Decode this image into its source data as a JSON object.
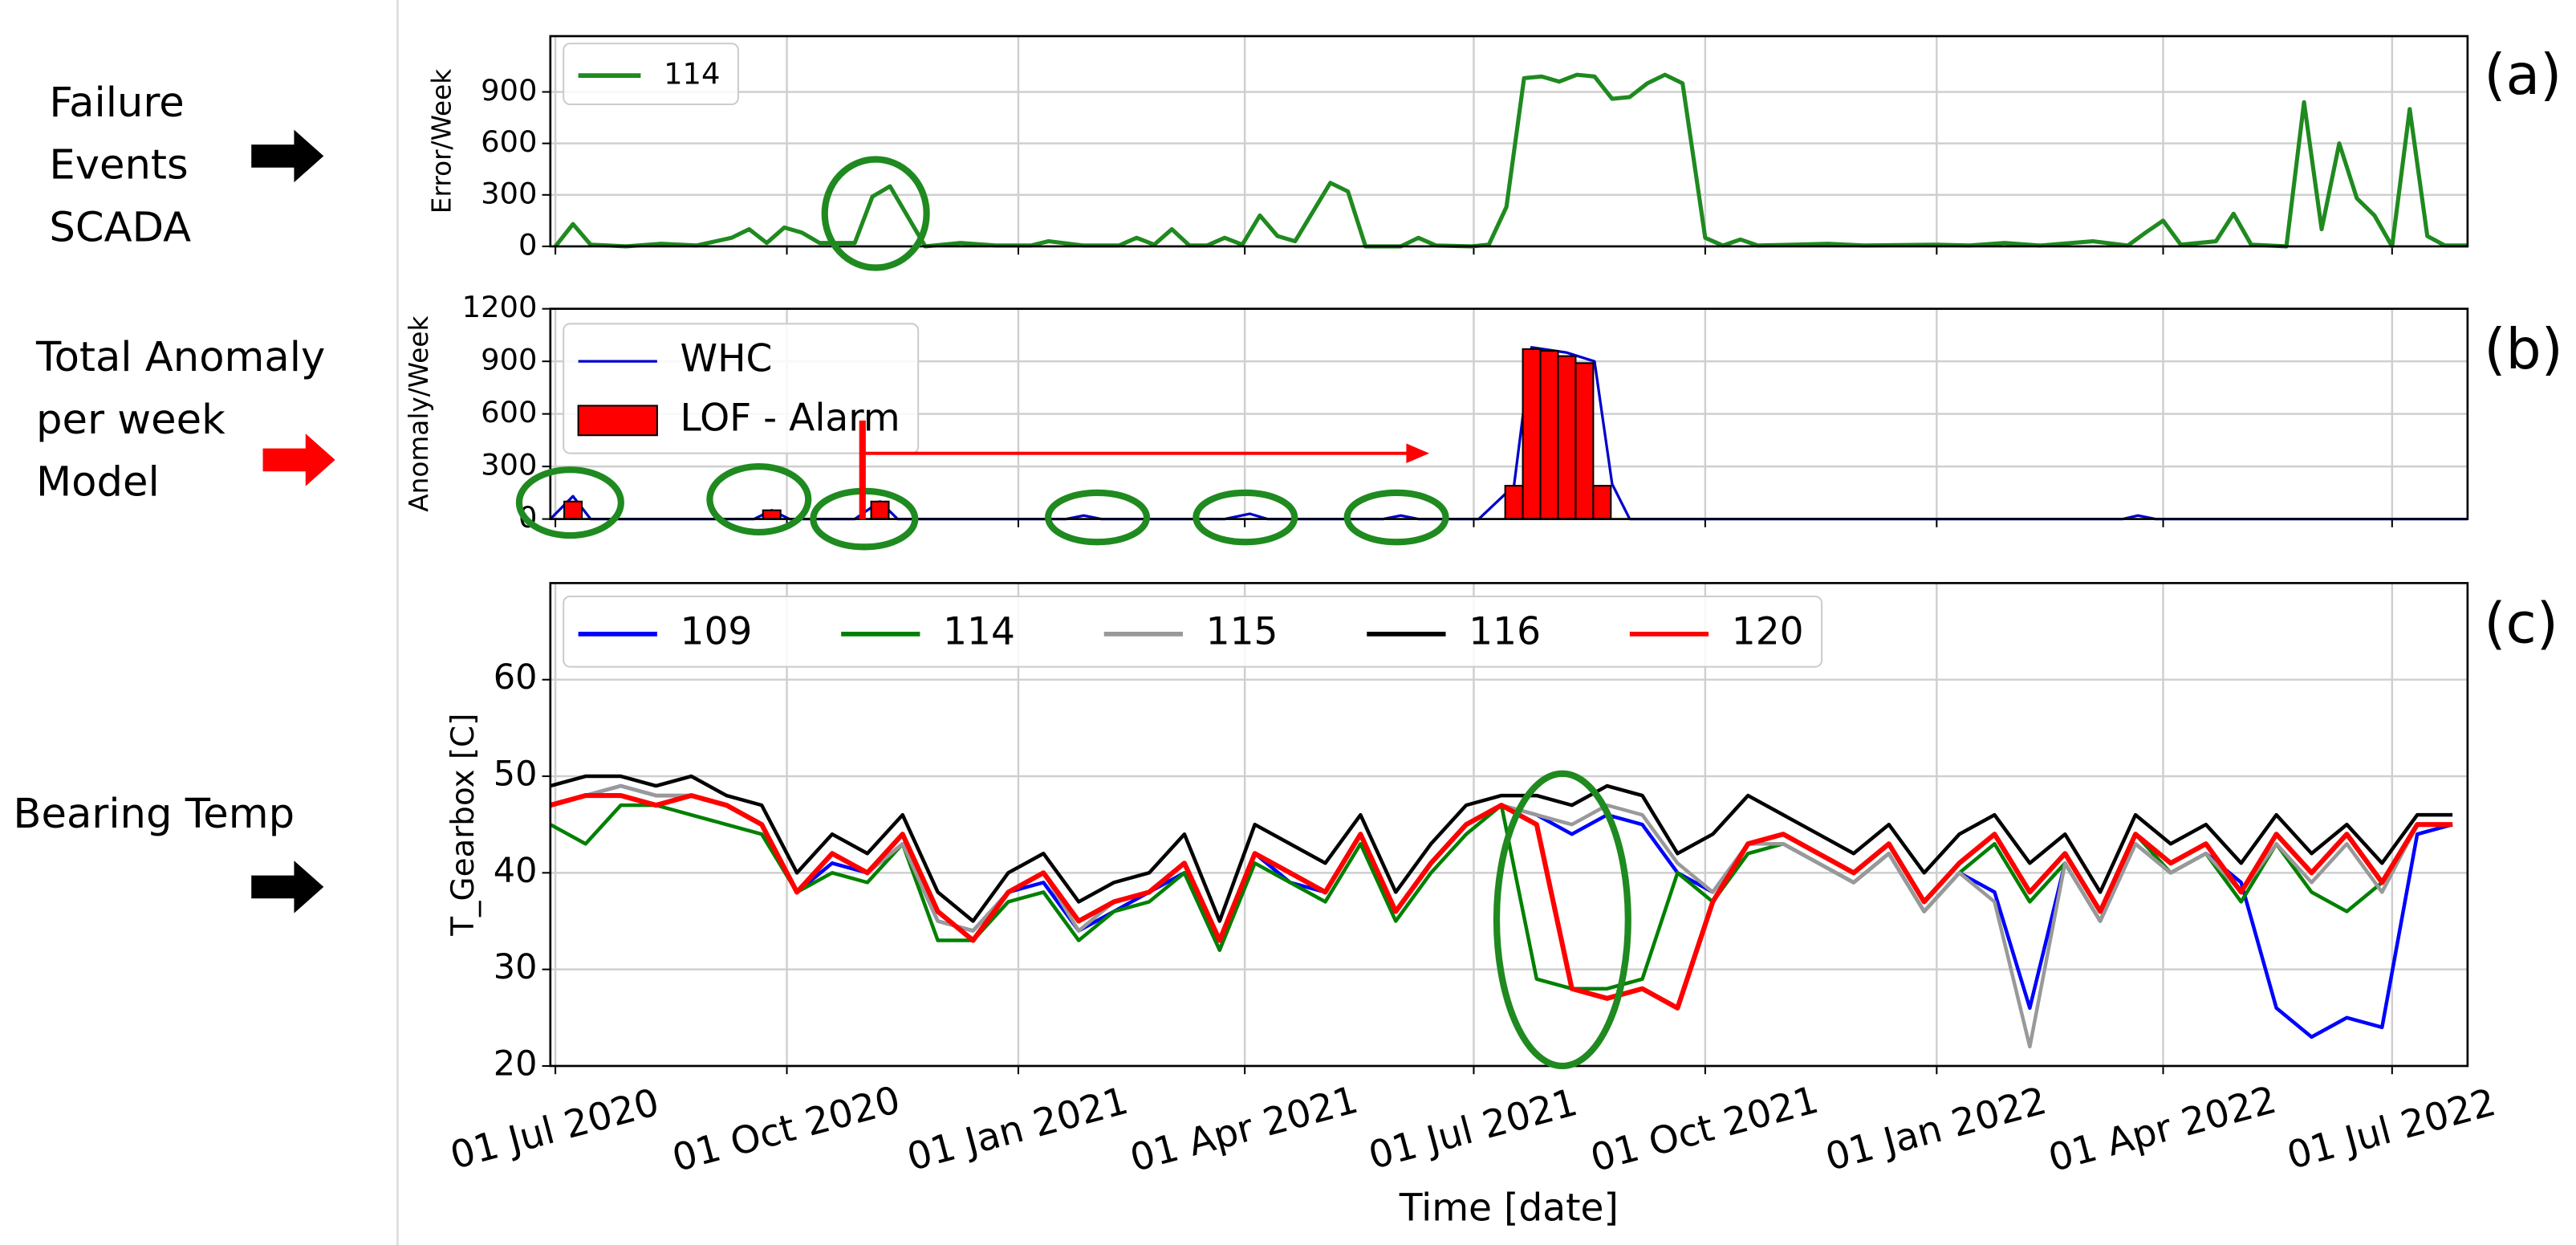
{
  "chart_data": [
    {
      "type": "line",
      "panel_label": "(a)",
      "ylabel": "Error/Week",
      "grid": true,
      "legend": "upper left",
      "legend_columns": 1,
      "xlim": [
        "2020-06-29",
        "2022-07-31"
      ],
      "ylim": [
        0,
        1225
      ],
      "yticks": [
        0,
        300,
        600,
        900
      ],
      "xticks": [
        "2020-07-01",
        "2020-10-01",
        "2021-01-01",
        "2021-04-01",
        "2021-07-01",
        "2021-10-01",
        "2022-01-01",
        "2022-04-01",
        "2022-07-01"
      ],
      "series": [
        {
          "name": "114",
          "color": "#1f8a1f",
          "x": [
            "2020-07-01",
            "2020-07-08",
            "2020-07-15",
            "2020-07-29",
            "2020-08-12",
            "2020-08-26",
            "2020-09-09",
            "2020-09-16",
            "2020-09-23",
            "2020-09-30",
            "2020-10-07",
            "2020-10-14",
            "2020-10-28",
            "2020-11-04",
            "2020-11-11",
            "2020-11-25",
            "2020-12-09",
            "2020-12-23",
            "2021-01-06",
            "2021-01-13",
            "2021-01-27",
            "2021-02-10",
            "2021-02-17",
            "2021-02-24",
            "2021-03-03",
            "2021-03-10",
            "2021-03-17",
            "2021-03-24",
            "2021-03-31",
            "2021-04-07",
            "2021-04-14",
            "2021-04-21",
            "2021-05-05",
            "2021-05-12",
            "2021-05-19",
            "2021-06-02",
            "2021-06-09",
            "2021-06-16",
            "2021-06-30",
            "2021-07-07",
            "2021-07-14",
            "2021-07-21",
            "2021-07-28",
            "2021-08-04",
            "2021-08-11",
            "2021-08-18",
            "2021-08-25",
            "2021-09-01",
            "2021-09-08",
            "2021-09-15",
            "2021-09-22",
            "2021-10-01",
            "2021-10-08",
            "2021-10-15",
            "2021-10-22",
            "2021-11-05",
            "2021-11-19",
            "2021-12-03",
            "2021-12-31",
            "2022-01-14",
            "2022-01-28",
            "2022-02-11",
            "2022-03-04",
            "2022-03-18",
            "2022-03-25",
            "2022-04-01",
            "2022-04-08",
            "2022-04-22",
            "2022-04-29",
            "2022-05-06",
            "2022-05-20",
            "2022-05-27",
            "2022-06-03",
            "2022-06-10",
            "2022-06-17",
            "2022-06-24",
            "2022-07-01",
            "2022-07-08",
            "2022-07-15",
            "2022-07-22",
            "2022-07-31"
          ],
          "values": [
            0,
            130,
            10,
            0,
            15,
            5,
            50,
            100,
            20,
            110,
            80,
            20,
            20,
            290,
            350,
            0,
            20,
            5,
            5,
            30,
            5,
            5,
            50,
            10,
            100,
            5,
            5,
            50,
            10,
            180,
            60,
            30,
            370,
            320,
            0,
            0,
            50,
            5,
            0,
            10,
            230,
            980,
            990,
            960,
            1000,
            990,
            860,
            870,
            950,
            1000,
            950,
            50,
            5,
            40,
            5,
            10,
            15,
            5,
            10,
            5,
            20,
            5,
            30,
            5,
            80,
            150,
            10,
            30,
            190,
            10,
            0,
            840,
            100,
            600,
            280,
            180,
            0,
            800,
            60,
            5,
            5
          ]
        }
      ]
    },
    {
      "type": "combo",
      "panel_label": "(b)",
      "ylabel": "Anomaly/Week",
      "grid": true,
      "legend": "upper left",
      "legend_columns": 1,
      "xlim": [
        "2020-06-29",
        "2022-07-31"
      ],
      "ylim": [
        0,
        1200
      ],
      "yticks": [
        0,
        300,
        600,
        900,
        1200
      ],
      "xticks": [
        "2020-07-01",
        "2020-10-01",
        "2021-01-01",
        "2021-04-01",
        "2021-07-01",
        "2021-10-01",
        "2022-01-01",
        "2022-04-01",
        "2022-07-01"
      ],
      "series": [
        {
          "name": "WHC",
          "type": "line",
          "color": "#0000cc",
          "x": [
            "2020-06-29",
            "2020-07-08",
            "2020-07-15",
            "2020-09-18",
            "2020-09-25",
            "2020-10-02",
            "2020-10-28",
            "2020-11-07",
            "2020-11-14",
            "2021-01-20",
            "2021-01-27",
            "2021-02-03",
            "2021-03-24",
            "2021-04-03",
            "2021-04-10",
            "2021-05-26",
            "2021-06-02",
            "2021-06-09",
            "2021-07-03",
            "2021-07-17",
            "2021-07-24",
            "2021-08-07",
            "2021-08-18",
            "2021-08-25",
            "2021-09-01",
            "2022-03-16",
            "2022-03-22",
            "2022-03-29",
            "2022-07-31"
          ],
          "values": [
            0,
            130,
            0,
            0,
            50,
            0,
            0,
            100,
            0,
            0,
            20,
            0,
            0,
            30,
            0,
            0,
            20,
            0,
            0,
            190,
            980,
            950,
            900,
            200,
            0,
            0,
            20,
            0,
            0
          ]
        },
        {
          "name": "LOF - Alarm",
          "type": "bar",
          "color": "#ff0000",
          "x": [
            "2020-07-08",
            "2020-09-25",
            "2020-11-07",
            "2021-07-17",
            "2021-07-24",
            "2021-07-31",
            "2021-08-07",
            "2021-08-14",
            "2021-08-21"
          ],
          "values": [
            100,
            50,
            100,
            190,
            970,
            960,
            930,
            890,
            190
          ]
        }
      ]
    },
    {
      "type": "line",
      "panel_label": "(c)",
      "ylabel": "T_Gearbox [C]",
      "xlabel": "Time [date]",
      "grid": true,
      "legend": "upper left",
      "legend_columns": 5,
      "xlim": [
        "2020-06-29",
        "2022-07-31"
      ],
      "ylim": [
        20,
        70
      ],
      "yticks": [
        20,
        30,
        40,
        50,
        60
      ],
      "xticks": [
        {
          "value": "2020-07-01",
          "label": "01 Jul 2020"
        },
        {
          "value": "2020-10-01",
          "label": "01 Oct 2020"
        },
        {
          "value": "2021-01-01",
          "label": "01 Jan 2021"
        },
        {
          "value": "2021-04-01",
          "label": "01 Apr 2021"
        },
        {
          "value": "2021-07-01",
          "label": "01 Jul 2021"
        },
        {
          "value": "2021-10-01",
          "label": "01 Oct 2021"
        },
        {
          "value": "2022-01-01",
          "label": "01 Jan 2022"
        },
        {
          "value": "2022-04-01",
          "label": "01 Apr 2022"
        },
        {
          "value": "2022-07-01",
          "label": "01 Jul 2022"
        }
      ],
      "x": [
        "2020-06-29",
        "2020-07-13",
        "2020-07-27",
        "2020-08-10",
        "2020-08-24",
        "2020-09-07",
        "2020-09-21",
        "2020-10-05",
        "2020-10-19",
        "2020-11-02",
        "2020-11-16",
        "2020-11-30",
        "2020-12-14",
        "2020-12-28",
        "2021-01-11",
        "2021-01-25",
        "2021-02-08",
        "2021-02-22",
        "2021-03-08",
        "2021-03-22",
        "2021-04-05",
        "2021-04-19",
        "2021-05-03",
        "2021-05-17",
        "2021-05-31",
        "2021-06-14",
        "2021-06-28",
        "2021-07-12",
        "2021-07-26",
        "2021-08-09",
        "2021-08-23",
        "2021-09-06",
        "2021-09-20",
        "2021-10-04",
        "2021-10-18",
        "2021-11-01",
        "2021-11-15",
        "2021-11-29",
        "2021-12-13",
        "2021-12-27",
        "2022-01-10",
        "2022-01-24",
        "2022-02-07",
        "2022-02-21",
        "2022-03-07",
        "2022-03-21",
        "2022-04-04",
        "2022-04-18",
        "2022-05-02",
        "2022-05-16",
        "2022-05-30",
        "2022-06-13",
        "2022-06-27",
        "2022-07-11",
        "2022-07-25"
      ],
      "series": [
        {
          "name": "109",
          "color": "#0000ff",
          "values": [
            47,
            48,
            49,
            48,
            48,
            47,
            45,
            38,
            41,
            40,
            43,
            35,
            34,
            38,
            39,
            34,
            36,
            38,
            40,
            32,
            42,
            39,
            38,
            44,
            36,
            41,
            45,
            47,
            46,
            44,
            46,
            45,
            40,
            38,
            43,
            43,
            41,
            39,
            42,
            36,
            40,
            38,
            26,
            41,
            35,
            43,
            40,
            42,
            39,
            26,
            23,
            25,
            24,
            44,
            45
          ]
        },
        {
          "name": "114",
          "color": "#008000",
          "values": [
            45,
            43,
            47,
            47,
            46,
            45,
            44,
            38,
            40,
            39,
            43,
            33,
            33,
            37,
            38,
            33,
            36,
            37,
            40,
            32,
            41,
            39,
            37,
            43,
            35,
            40,
            44,
            47,
            29,
            28,
            28,
            29,
            40,
            37,
            42,
            43,
            41,
            39,
            42,
            36,
            40,
            43,
            37,
            41,
            35,
            44,
            40,
            42,
            37,
            43,
            38,
            36,
            39,
            45,
            45
          ]
        },
        {
          "name": "115",
          "color": "#999999",
          "values": [
            47,
            48,
            49,
            48,
            48,
            47,
            45,
            38,
            42,
            40,
            43,
            35,
            34,
            38,
            40,
            34,
            37,
            38,
            41,
            33,
            42,
            40,
            38,
            44,
            36,
            41,
            45,
            47,
            46,
            45,
            47,
            46,
            41,
            38,
            43,
            43,
            41,
            39,
            42,
            36,
            40,
            37,
            22,
            41,
            35,
            43,
            40,
            42,
            38,
            43,
            39,
            43,
            38,
            45,
            45
          ]
        },
        {
          "name": "116",
          "color": "#000000",
          "values": [
            49,
            50,
            50,
            49,
            50,
            48,
            47,
            40,
            44,
            42,
            46,
            38,
            35,
            40,
            42,
            37,
            39,
            40,
            44,
            35,
            45,
            43,
            41,
            46,
            38,
            43,
            47,
            48,
            48,
            47,
            49,
            48,
            42,
            44,
            48,
            46,
            44,
            42,
            45,
            40,
            44,
            46,
            41,
            44,
            38,
            46,
            43,
            45,
            41,
            46,
            42,
            45,
            41,
            46,
            46
          ]
        },
        {
          "name": "120",
          "color": "#ff0000",
          "values": [
            47,
            48,
            48,
            47,
            48,
            47,
            45,
            38,
            42,
            40,
            44,
            36,
            33,
            38,
            40,
            35,
            37,
            38,
            41,
            33,
            42,
            40,
            38,
            44,
            36,
            41,
            45,
            47,
            45,
            28,
            27,
            28,
            26,
            37,
            43,
            44,
            42,
            40,
            43,
            37,
            41,
            44,
            38,
            42,
            36,
            44,
            41,
            43,
            38,
            44,
            40,
            44,
            39,
            45,
            45
          ]
        }
      ]
    }
  ],
  "side_labels": [
    {
      "lines": [
        "Failure",
        "Events",
        "SCADA"
      ],
      "color": "#000000"
    },
    {
      "lines": [
        "Total Anomaly",
        "per week",
        "Model"
      ],
      "color": "#ff0000"
    },
    {
      "lines": [
        "Bearing Temp"
      ],
      "color": "#000000"
    }
  ]
}
